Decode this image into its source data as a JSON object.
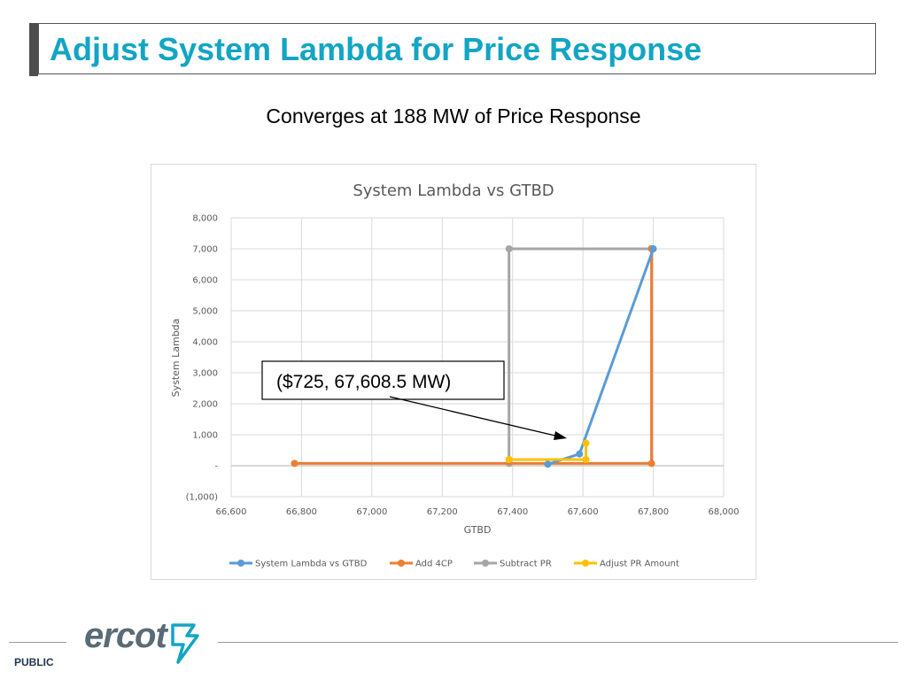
{
  "slide": {
    "title": "Adjust System Lambda for Price Response",
    "subtitle": "Converges at 188 MW of Price Response",
    "classification": "PUBLIC",
    "logo_text": "ercot"
  },
  "colors": {
    "title": "#12a5c4",
    "system_lambda": "#5b9bd5",
    "add_4cp": "#ed7d31",
    "subtract_pr": "#a5a5a5",
    "adjust_pr": "#ffc000",
    "logo": "#5b6b75",
    "logo_mark": "#12a5c4"
  },
  "chart_data": {
    "type": "scatter",
    "title": "System Lambda vs GTBD",
    "xlabel": "GTBD",
    "ylabel": "System Lambda",
    "xlim": [
      66600,
      68000
    ],
    "ylim": [
      -1000,
      8000
    ],
    "x_ticks": [
      "66,600",
      "66,800",
      "67,000",
      "67,200",
      "67,400",
      "67,600",
      "67,800",
      "68,000"
    ],
    "y_ticks": [
      "(1,000)",
      "-",
      "1,000",
      "2,000",
      "3,000",
      "4,000",
      "5,000",
      "6,000",
      "7,000",
      "8,000"
    ],
    "grid": true,
    "legend_position": "bottom",
    "series": [
      {
        "name": "System Lambda vs GTBD",
        "color": "#5b9bd5",
        "points": [
          [
            67500,
            50
          ],
          [
            67590,
            380
          ],
          [
            67800,
            7000
          ]
        ]
      },
      {
        "name": "Add 4CP",
        "color": "#ed7d31",
        "points": [
          [
            66780,
            75
          ],
          [
            67795,
            75
          ],
          [
            67795,
            7000
          ]
        ]
      },
      {
        "name": "Subtract PR",
        "color": "#a5a5a5",
        "points": [
          [
            67390,
            75
          ],
          [
            67390,
            7000
          ],
          [
            67795,
            7000
          ]
        ]
      },
      {
        "name": "Adjust PR Amount",
        "color": "#ffc000",
        "points": [
          [
            67390,
            200
          ],
          [
            67608.5,
            200
          ],
          [
            67608.5,
            725
          ]
        ]
      }
    ],
    "annotation": {
      "text": "($725, 67,608.5 MW)",
      "x": 67608.5,
      "y": 725
    }
  }
}
